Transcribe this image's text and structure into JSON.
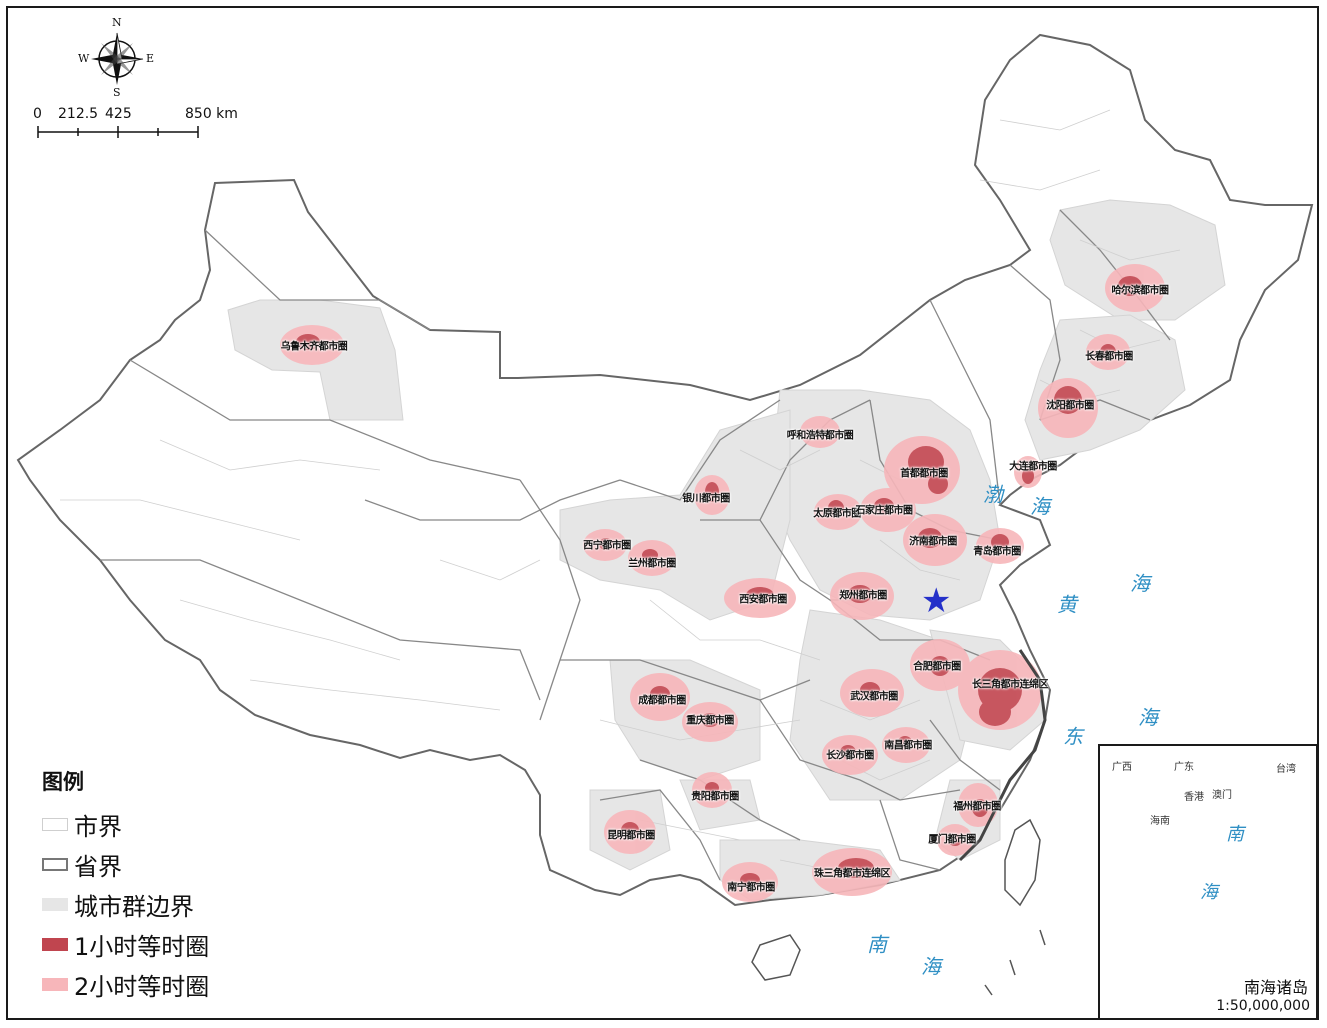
{
  "compass": {
    "n": "N",
    "s": "S",
    "e": "E",
    "w": "W"
  },
  "scale_bar": {
    "ticks": [
      "0",
      "212.5",
      "425",
      "850 km"
    ]
  },
  "legend": {
    "title": "图例",
    "items": [
      {
        "label": "市界",
        "swatch": "city-border",
        "fill": "#ffffff",
        "stroke": "#cfcfcf"
      },
      {
        "label": "省界",
        "swatch": "province-border",
        "fill": "#ffffff",
        "stroke": "#777777"
      },
      {
        "label": "城市群边界",
        "swatch": "cluster-area",
        "fill": "#e6e6e6",
        "stroke": "#e6e6e6"
      },
      {
        "label": "1小时等时圈",
        "swatch": "isochrone-1h",
        "fill": "#c0454f",
        "stroke": "#c0454f"
      },
      {
        "label": "2小时等时圈",
        "swatch": "isochrone-2h",
        "fill": "#f7b6ba",
        "stroke": "#f7b6ba"
      }
    ]
  },
  "metro_circles": [
    {
      "name": "乌鲁木齐都市圈",
      "key": "urumqi"
    },
    {
      "name": "哈尔滨都市圈",
      "key": "harbin"
    },
    {
      "name": "长春都市圈",
      "key": "changchun"
    },
    {
      "name": "沈阳都市圈",
      "key": "shenyang"
    },
    {
      "name": "大连都市圈",
      "key": "dalian"
    },
    {
      "name": "呼和浩特都市圈",
      "key": "hohhot"
    },
    {
      "name": "首都都市圈",
      "key": "capital"
    },
    {
      "name": "银川都市圈",
      "key": "yinchuan"
    },
    {
      "name": "太原都市圈",
      "key": "taiyuan"
    },
    {
      "name": "石家庄都市圈",
      "key": "shijiazhuang"
    },
    {
      "name": "济南都市圈",
      "key": "jinan"
    },
    {
      "name": "青岛都市圈",
      "key": "qingdao"
    },
    {
      "name": "西宁都市圈",
      "key": "xining"
    },
    {
      "name": "兰州都市圈",
      "key": "lanzhou"
    },
    {
      "name": "西安都市圈",
      "key": "xian"
    },
    {
      "name": "郑州都市圈",
      "key": "zhengzhou"
    },
    {
      "name": "合肥都市圈",
      "key": "hefei"
    },
    {
      "name": "长三角都市连绵区",
      "key": "yangtze-delta"
    },
    {
      "name": "成都都市圈",
      "key": "chengdu"
    },
    {
      "name": "重庆都市圈",
      "key": "chongqing"
    },
    {
      "name": "武汉都市圈",
      "key": "wuhan"
    },
    {
      "name": "长沙都市圈",
      "key": "changsha"
    },
    {
      "name": "南昌都市圈",
      "key": "nanchang"
    },
    {
      "name": "贵阳都市圈",
      "key": "guiyang"
    },
    {
      "name": "昆明都市圈",
      "key": "kunming"
    },
    {
      "name": "福州都市圈",
      "key": "fuzhou"
    },
    {
      "name": "厦门都市圈",
      "key": "xiamen"
    },
    {
      "name": "南宁都市圈",
      "key": "nanning"
    },
    {
      "name": "珠三角都市连绵区",
      "key": "pearl-delta"
    }
  ],
  "seas": [
    {
      "char": "渤",
      "key": "bohai-1"
    },
    {
      "char": "海",
      "key": "bohai-2"
    },
    {
      "char": "黄",
      "key": "huang"
    },
    {
      "char": "海",
      "key": "huang-hai"
    },
    {
      "char": "东",
      "key": "dong"
    },
    {
      "char": "海",
      "key": "dong-hai"
    },
    {
      "char": "南",
      "key": "nan"
    },
    {
      "char": "海",
      "key": "nan-hai"
    }
  ],
  "inset": {
    "title": "南海诸岛",
    "scale": "1:50,000,000",
    "places": [
      "广西",
      "广东",
      "香港",
      "澳门",
      "台湾",
      "海南"
    ],
    "sea_chars": [
      "南",
      "海"
    ]
  },
  "marker": {
    "symbol": "★",
    "color": "#2430c9"
  }
}
